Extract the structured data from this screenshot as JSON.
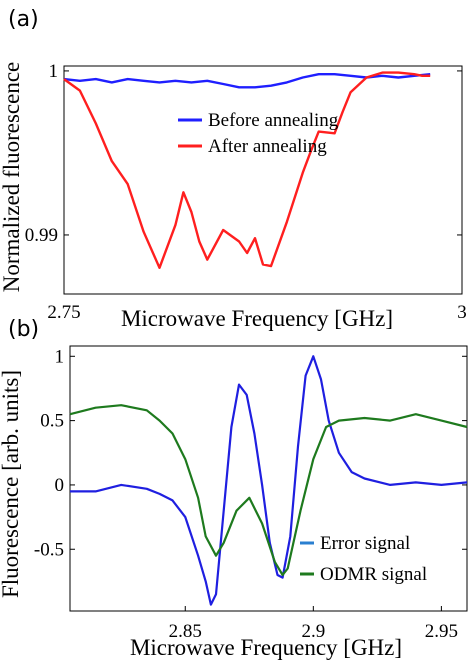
{
  "chart_data": [
    {
      "type": "line",
      "panel_label": "(a)",
      "xlabel": "Microwave Frequency [GHz]",
      "ylabel": "Normalized fluorescence",
      "xlim": [
        2.75,
        3.0
      ],
      "ylim": [
        0.9864,
        1.0003
      ],
      "x_ticks": [
        {
          "value": 2.75,
          "label": "2.75"
        },
        {
          "value": 3.0,
          "label": "3"
        }
      ],
      "y_ticks": [
        {
          "value": 1.0,
          "label": "1"
        },
        {
          "value": 0.99,
          "label": "0.99"
        }
      ],
      "grid": false,
      "legend_placement": "center",
      "series": [
        {
          "name": "Before annealing",
          "color": "#1f1fff",
          "x": [
            2.75,
            2.76,
            2.77,
            2.78,
            2.79,
            2.8,
            2.81,
            2.82,
            2.83,
            2.84,
            2.85,
            2.86,
            2.87,
            2.88,
            2.89,
            2.9,
            2.91,
            2.92,
            2.93,
            2.94,
            2.95,
            2.96,
            2.97,
            2.98
          ],
          "y": [
            0.9995,
            0.9994,
            0.9995,
            0.9993,
            0.9995,
            0.9994,
            0.9993,
            0.9994,
            0.9993,
            0.9994,
            0.9992,
            0.999,
            0.999,
            0.9991,
            0.9993,
            0.9996,
            0.9998,
            0.9998,
            0.9997,
            0.9996,
            0.9997,
            0.9996,
            0.9997,
            0.9998
          ]
        },
        {
          "name": "After annealing",
          "color": "#ff1f1f",
          "x": [
            2.75,
            2.76,
            2.77,
            2.78,
            2.79,
            2.8,
            2.81,
            2.82,
            2.825,
            2.83,
            2.835,
            2.84,
            2.85,
            2.86,
            2.865,
            2.87,
            2.875,
            2.88,
            2.89,
            2.9,
            2.905,
            2.91,
            2.92,
            2.925,
            2.93,
            2.94,
            2.95,
            2.96,
            2.97,
            2.975,
            2.98
          ],
          "y": [
            0.9995,
            0.9988,
            0.9968,
            0.9945,
            0.9931,
            0.9902,
            0.988,
            0.9906,
            0.9926,
            0.9914,
            0.9896,
            0.9885,
            0.9903,
            0.9896,
            0.9889,
            0.9898,
            0.9882,
            0.9881,
            0.9908,
            0.9938,
            0.9951,
            0.9963,
            0.9962,
            0.9975,
            0.9987,
            0.9996,
            0.9999,
            0.9999,
            0.9998,
            0.9997,
            0.9997
          ]
        }
      ]
    },
    {
      "type": "line",
      "panel_label": "(b)",
      "xlabel": "Microwave Frequency [GHz]",
      "ylabel": "Fluorescence [arb. units]",
      "xlim": [
        2.805,
        2.96
      ],
      "ylim": [
        -0.98,
        1.08
      ],
      "x_ticks": [
        {
          "value": 2.85,
          "label": "2.85"
        },
        {
          "value": 2.9,
          "label": "2.9"
        },
        {
          "value": 2.95,
          "label": "2.95"
        }
      ],
      "y_ticks": [
        {
          "value": 1.0,
          "label": "1"
        },
        {
          "value": 0.5,
          "label": "0.5"
        },
        {
          "value": 0.0,
          "label": "0"
        },
        {
          "value": -0.5,
          "label": "-0.5"
        }
      ],
      "grid": false,
      "legend_placement": "bottom-right",
      "series": [
        {
          "name": "Error signal",
          "color": "#1f1fe0",
          "legend_color": "#2a7fd0",
          "x": [
            2.805,
            2.815,
            2.825,
            2.835,
            2.84,
            2.845,
            2.85,
            2.855,
            2.858,
            2.86,
            2.862,
            2.865,
            2.868,
            2.871,
            2.874,
            2.877,
            2.88,
            2.883,
            2.886,
            2.888,
            2.891,
            2.894,
            2.897,
            2.9,
            2.903,
            2.906,
            2.91,
            2.915,
            2.92,
            2.93,
            2.94,
            2.95,
            2.96
          ],
          "y": [
            -0.05,
            -0.05,
            0.0,
            -0.03,
            -0.07,
            -0.12,
            -0.25,
            -0.55,
            -0.75,
            -0.93,
            -0.85,
            -0.2,
            0.45,
            0.78,
            0.7,
            0.4,
            0.0,
            -0.45,
            -0.7,
            -0.72,
            -0.4,
            0.3,
            0.85,
            1.0,
            0.82,
            0.5,
            0.25,
            0.1,
            0.05,
            0.0,
            0.02,
            0.0,
            0.02
          ]
        },
        {
          "name": "ODMR signal",
          "color": "#1e7a1e",
          "legend_color": "#1e7a1e",
          "x": [
            2.805,
            2.815,
            2.825,
            2.835,
            2.84,
            2.845,
            2.85,
            2.855,
            2.858,
            2.862,
            2.865,
            2.87,
            2.875,
            2.88,
            2.885,
            2.888,
            2.89,
            2.895,
            2.9,
            2.905,
            2.91,
            2.92,
            2.93,
            2.94,
            2.95,
            2.96
          ],
          "y": [
            0.55,
            0.6,
            0.62,
            0.58,
            0.5,
            0.4,
            0.2,
            -0.1,
            -0.4,
            -0.55,
            -0.45,
            -0.2,
            -0.1,
            -0.3,
            -0.6,
            -0.7,
            -0.65,
            -0.2,
            0.2,
            0.45,
            0.5,
            0.52,
            0.5,
            0.55,
            0.5,
            0.45
          ]
        }
      ]
    }
  ]
}
